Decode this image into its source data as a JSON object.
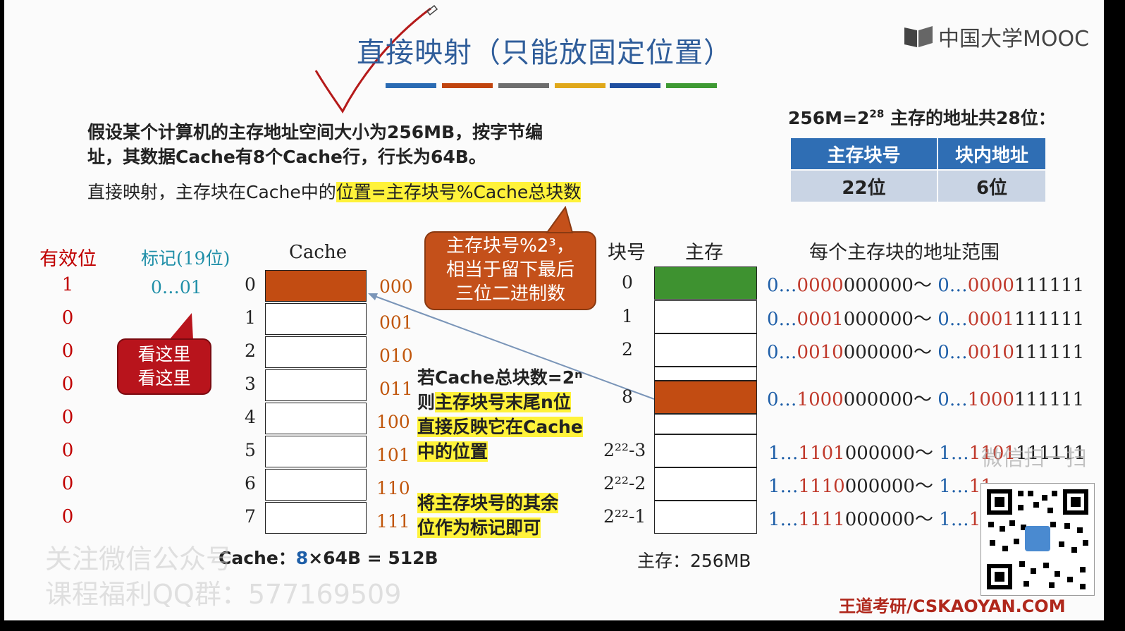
{
  "title": "直接映射（只能放固定位置）",
  "logo_text": "中国大学MOOC",
  "accent_bars": [
    "#2a6bb3",
    "#c1440e",
    "#6e6e6e",
    "#e0a81a",
    "#1f4fa0",
    "#3e9a33"
  ],
  "intro_line1": "假设某个计算机的主存地址空间大小为256MB，按字节编",
  "intro_line2": "址，其数据Cache有8个Cache行，行长为64B。",
  "rule_prefix": "直接映射，主存块在Cache中的",
  "rule_highlight": "位置=主存块号%Cache总块数",
  "address_info_prefix": "256M=2",
  "address_info_exp": "28",
  "address_info_suffix": " 主存的地址共28位：",
  "address_table": {
    "headers": [
      "主存块号",
      "块内地址"
    ],
    "values": [
      "22位",
      "6位"
    ]
  },
  "headers": {
    "valid": "有效位",
    "tag": "标记(19位)",
    "cache": "Cache",
    "block_no": "块号",
    "memory": "主存",
    "range": "每个主存块的地址范围"
  },
  "cache_rows": [
    {
      "valid": "1",
      "index": "0",
      "bin": "000",
      "tag": "0…01",
      "filled": true
    },
    {
      "valid": "0",
      "index": "1",
      "bin": "001",
      "tag": "",
      "filled": false
    },
    {
      "valid": "0",
      "index": "2",
      "bin": "010",
      "tag": "",
      "filled": false
    },
    {
      "valid": "0",
      "index": "3",
      "bin": "011",
      "tag": "",
      "filled": false
    },
    {
      "valid": "0",
      "index": "4",
      "bin": "100",
      "tag": "",
      "filled": false
    },
    {
      "valid": "0",
      "index": "5",
      "bin": "101",
      "tag": "",
      "filled": false
    },
    {
      "valid": "0",
      "index": "6",
      "bin": "110",
      "tag": "",
      "filled": false
    },
    {
      "valid": "0",
      "index": "7",
      "bin": "111",
      "tag": "",
      "filled": false
    }
  ],
  "callout_orange": [
    "主存块号%2³，",
    "相当于留下最后",
    "三位二进制数"
  ],
  "callout_red": [
    "看这里",
    "看这里"
  ],
  "note1": {
    "line1": "若Cache总块数=2ⁿ",
    "line2_prefix": "则",
    "line2_hl": "主存块号末尾n位",
    "line3": "直接反映它在Cache",
    "line4": "中的位置"
  },
  "note2": [
    "将主存块号的其余",
    "位作为标记即可"
  ],
  "memory_blocks": [
    {
      "label": "0",
      "pre": "0…",
      "mid": "0000",
      "start": "000000～ ",
      "pre2": "0…",
      "mid2": "0000",
      "end": "111111",
      "color": "green"
    },
    {
      "label": "1",
      "pre": "0…",
      "mid": "0001",
      "start": "000000～ ",
      "pre2": "0…",
      "mid2": "0001",
      "end": "111111",
      "color": "white"
    },
    {
      "label": "2",
      "pre": "0…",
      "mid": "0010",
      "start": "000000～ ",
      "pre2": "0…",
      "mid2": "0010",
      "end": "111111",
      "color": "white"
    },
    {
      "label": "8",
      "pre": "0…",
      "mid": "1000",
      "start": "000000～ ",
      "pre2": "0…",
      "mid2": "1000",
      "end": "111111",
      "color": "orange"
    },
    {
      "label": "2²²-3",
      "pre": "1…",
      "mid": "1101",
      "start": "000000～ ",
      "pre2": "1…",
      "mid2": "1101",
      "end": "111111",
      "color": "white"
    },
    {
      "label": "2²²-2",
      "pre": "1…",
      "mid": "1110",
      "start": "000000～ ",
      "pre2": "1…",
      "mid2": "11",
      "end": "",
      "color": "white"
    },
    {
      "label": "2²²-1",
      "pre": "1…",
      "mid": "1111",
      "start": "000000～ ",
      "pre2": "1…",
      "mid2": "11",
      "end": "",
      "color": "white"
    }
  ],
  "cache_size_label": "Cache：",
  "cache_size_eq_a": "8",
  "cache_size_eq_b": "×64B = 512B",
  "memory_size": "主存：256MB",
  "watermark1": "关注微信公众号",
  "watermark2": "课程福利QQ群：577169509",
  "wechat_scan": "微信扫一扫",
  "footer_brand": "王道考研/CSKAOYAN.COM",
  "colors": {
    "green": "#3e9230",
    "orange": "#c24c12",
    "white": "#ffffff",
    "highlight": "#fff23a",
    "title": "#2f5d9a"
  }
}
